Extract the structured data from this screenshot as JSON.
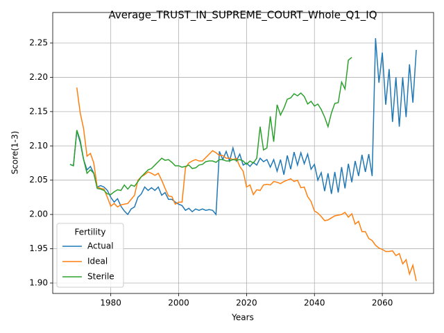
{
  "chart_data": {
    "type": "line",
    "title": "Average_TRUST_IN_SUPREME_COURT_Whole_Q1_IQ",
    "xlabel": "Years",
    "ylabel": "Score(1-3)",
    "legend_title": "Fertility",
    "legend": "lower left",
    "grid": true,
    "xlim": [
      1962.9,
      2075.1
    ],
    "ylim": [
      1.8848,
      2.2945
    ],
    "xticks": [
      1980,
      2000,
      2020,
      2040,
      2060
    ],
    "yticks": [
      {
        "value": 1.9,
        "label": "1.90"
      },
      1.95,
      {
        "value": 2.0,
        "label": "2.00"
      },
      2.05,
      {
        "value": 2.1,
        "label": "2.10"
      },
      2.15,
      {
        "value": 2.2,
        "label": "2.20"
      },
      2.25
    ],
    "x": [
      1968,
      1969,
      1970,
      1971,
      1972,
      1973,
      1974,
      1975,
      1976,
      1977,
      1978,
      1979,
      1980,
      1981,
      1982,
      1983,
      1984,
      1985,
      1986,
      1987,
      1988,
      1989,
      1990,
      1991,
      1992,
      1993,
      1994,
      1995,
      1996,
      1997,
      1998,
      1999,
      2000,
      2001,
      2002,
      2003,
      2004,
      2005,
      2006,
      2007,
      2008,
      2009,
      2010,
      2011,
      2012,
      2013,
      2014,
      2015,
      2016,
      2017,
      2018,
      2019,
      2020,
      2021,
      2022,
      2023,
      2024,
      2025,
      2026,
      2027,
      2028,
      2029,
      2030,
      2031,
      2032,
      2033,
      2034,
      2035,
      2036,
      2037,
      2038,
      2039,
      2040,
      2041,
      2042,
      2043,
      2044,
      2045,
      2046,
      2047,
      2048,
      2049,
      2050,
      2051,
      2052,
      2053,
      2054,
      2055,
      2056,
      2057,
      2058,
      2059,
      2060,
      2061,
      2062,
      2063,
      2064,
      2065,
      2066,
      2067,
      2068,
      2069,
      2070
    ],
    "series": [
      {
        "name": "Actual",
        "color": "#1f77b4",
        "values": [
          2.073,
          2.071,
          2.122,
          2.105,
          2.08,
          2.065,
          2.07,
          2.06,
          2.04,
          2.042,
          2.04,
          2.035,
          2.025,
          2.018,
          2.023,
          2.012,
          2.005,
          2.0,
          2.008,
          2.011,
          2.025,
          2.03,
          2.04,
          2.035,
          2.039,
          2.035,
          2.04,
          2.028,
          2.032,
          2.022,
          2.022,
          2.018,
          2.015,
          2.013,
          2.006,
          2.009,
          2.004,
          2.008,
          2.006,
          2.008,
          2.006,
          2.007,
          2.006,
          2.0,
          2.092,
          2.08,
          2.092,
          2.078,
          2.097,
          2.078,
          2.088,
          2.072,
          2.075,
          2.07,
          2.076,
          2.072,
          2.082,
          2.077,
          2.08,
          2.069,
          2.08,
          2.063,
          2.08,
          2.058,
          2.086,
          2.066,
          2.091,
          2.072,
          2.09,
          2.074,
          2.088,
          2.066,
          2.073,
          2.05,
          2.061,
          2.034,
          2.06,
          2.03,
          2.062,
          2.032,
          2.069,
          2.038,
          2.074,
          2.047,
          2.078,
          2.056,
          2.087,
          2.062,
          2.088,
          2.056,
          2.257,
          2.192,
          2.236,
          2.16,
          2.212,
          2.135,
          2.2,
          2.128,
          2.2,
          2.142,
          2.219,
          2.163,
          2.24
        ]
      },
      {
        "name": "Ideal",
        "color": "#ff7f0e",
        "values": [
          null,
          null,
          2.185,
          2.148,
          2.125,
          2.085,
          2.089,
          2.075,
          2.04,
          2.038,
          2.037,
          2.025,
          2.012,
          2.016,
          2.011,
          2.014,
          2.015,
          2.016,
          2.022,
          2.028,
          2.05,
          2.055,
          2.058,
          2.062,
          2.06,
          2.057,
          2.06,
          2.05,
          2.038,
          2.027,
          2.026,
          2.015,
          2.018,
          2.018,
          2.068,
          2.075,
          2.078,
          2.08,
          2.078,
          2.078,
          2.083,
          2.088,
          2.093,
          2.09,
          2.086,
          2.086,
          2.082,
          2.082,
          2.08,
          2.082,
          2.07,
          2.063,
          2.04,
          2.043,
          2.029,
          2.036,
          2.035,
          2.043,
          2.044,
          2.043,
          2.048,
          2.047,
          2.045,
          2.048,
          2.05,
          2.052,
          2.048,
          2.05,
          2.039,
          2.04,
          2.026,
          2.019,
          2.005,
          2.002,
          1.997,
          1.991,
          1.992,
          1.995,
          1.998,
          1.999,
          2.0,
          2.003,
          1.996,
          2.001,
          1.986,
          1.99,
          1.975,
          1.975,
          1.965,
          1.962,
          1.955,
          1.951,
          1.949,
          1.946,
          1.946,
          1.947,
          1.94,
          1.943,
          1.928,
          1.934,
          1.913,
          1.926,
          1.903
        ]
      },
      {
        "name": "Sterile",
        "color": "#2ca02c",
        "values": [
          2.073,
          2.071,
          2.123,
          2.108,
          2.08,
          2.06,
          2.065,
          2.06,
          2.038,
          2.037,
          2.035,
          2.03,
          2.029,
          2.033,
          2.036,
          2.035,
          2.043,
          2.037,
          2.043,
          2.041,
          2.048,
          2.055,
          2.06,
          2.065,
          2.067,
          2.072,
          2.077,
          2.082,
          2.079,
          2.08,
          2.076,
          2.071,
          2.071,
          2.069,
          2.07,
          2.072,
          2.067,
          2.068,
          2.072,
          2.073,
          2.077,
          2.078,
          2.078,
          2.076,
          2.08,
          2.08,
          2.078,
          2.078,
          2.08,
          2.079,
          2.08,
          2.078,
          2.073,
          2.078,
          2.075,
          2.082,
          2.128,
          2.094,
          2.097,
          2.143,
          2.106,
          2.16,
          2.145,
          2.155,
          2.168,
          2.17,
          2.176,
          2.173,
          2.177,
          2.172,
          2.161,
          2.165,
          2.158,
          2.161,
          2.153,
          2.142,
          2.128,
          2.148,
          2.162,
          2.163,
          2.193,
          2.183,
          2.225,
          2.229,
          null,
          null,
          null,
          null,
          null,
          null,
          null,
          null,
          null,
          null,
          null,
          null,
          null,
          null,
          null,
          null,
          null,
          null,
          null
        ]
      }
    ]
  }
}
